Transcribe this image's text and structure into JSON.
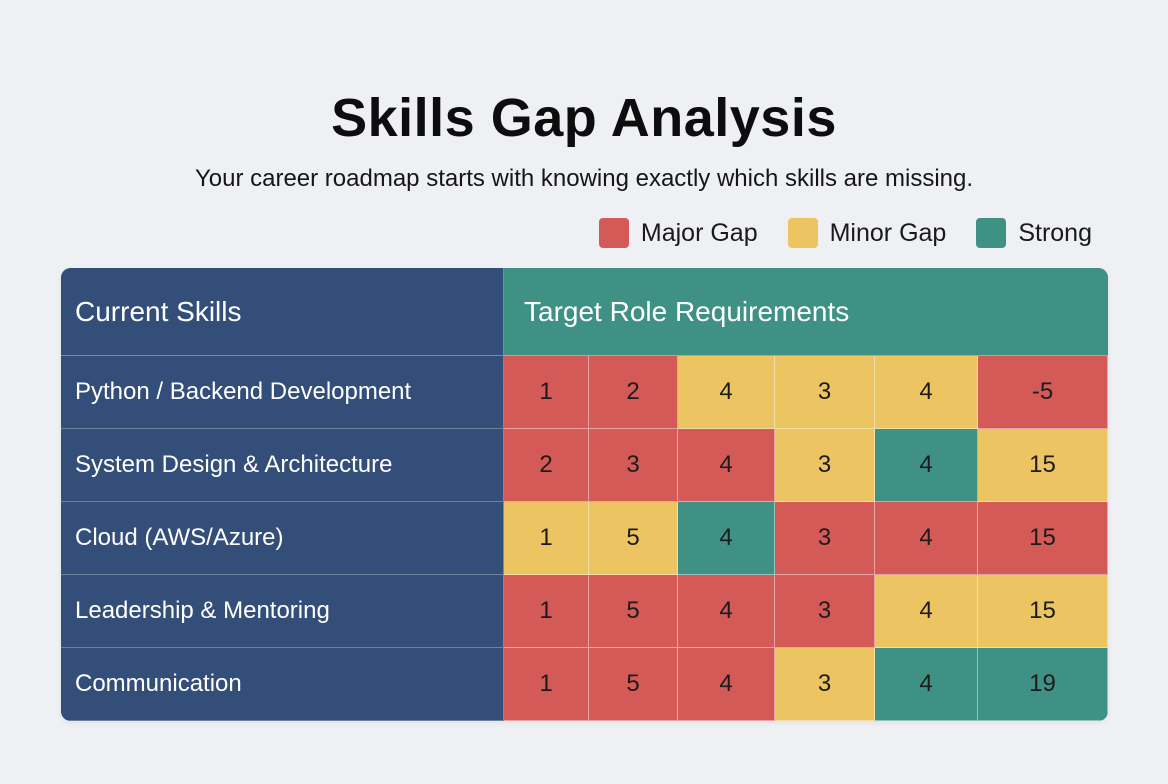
{
  "title": "Skills Gap Analysis",
  "subtitle": "Your career roadmap starts with knowing exactly which skills are missing.",
  "colors": {
    "major_gap": "#d45a57",
    "minor_gap": "#ecc462",
    "strong": "#409185",
    "skills_column": "#324e79",
    "requirements_header": "#409185"
  },
  "legend": [
    {
      "label": "Major Gap",
      "color": "#d45a57"
    },
    {
      "label": "Minor Gap",
      "color": "#ecc462"
    },
    {
      "label": "Strong",
      "color": "#409185"
    }
  ],
  "chart_data": {
    "type": "heatmap",
    "title": "Skills Gap Analysis",
    "row_header": "Current Skills",
    "column_header": "Target Role Requirements",
    "rows": [
      "Python / Backend Development",
      "System Design & Architecture",
      "Cloud (AWS/Azure)",
      "Leadership & Mentoring",
      "Communication"
    ],
    "values": [
      [
        1,
        2,
        4,
        3,
        4,
        -5
      ],
      [
        2,
        3,
        4,
        3,
        4,
        15
      ],
      [
        1,
        5,
        4,
        3,
        4,
        15
      ],
      [
        1,
        5,
        4,
        3,
        4,
        15
      ],
      [
        1,
        5,
        4,
        3,
        4,
        19
      ]
    ],
    "levels": [
      [
        "Major Gap",
        "Major Gap",
        "Minor Gap",
        "Minor Gap",
        "Minor Gap",
        "Major Gap"
      ],
      [
        "Major Gap",
        "Major Gap",
        "Major Gap",
        "Minor Gap",
        "Strong",
        "Minor Gap"
      ],
      [
        "Minor Gap",
        "Minor Gap",
        "Strong",
        "Major Gap",
        "Major Gap",
        "Major Gap"
      ],
      [
        "Major Gap",
        "Major Gap",
        "Major Gap",
        "Major Gap",
        "Minor Gap",
        "Minor Gap"
      ],
      [
        "Major Gap",
        "Major Gap",
        "Major Gap",
        "Minor Gap",
        "Strong",
        "Strong"
      ]
    ],
    "legend_position": "top-right"
  }
}
